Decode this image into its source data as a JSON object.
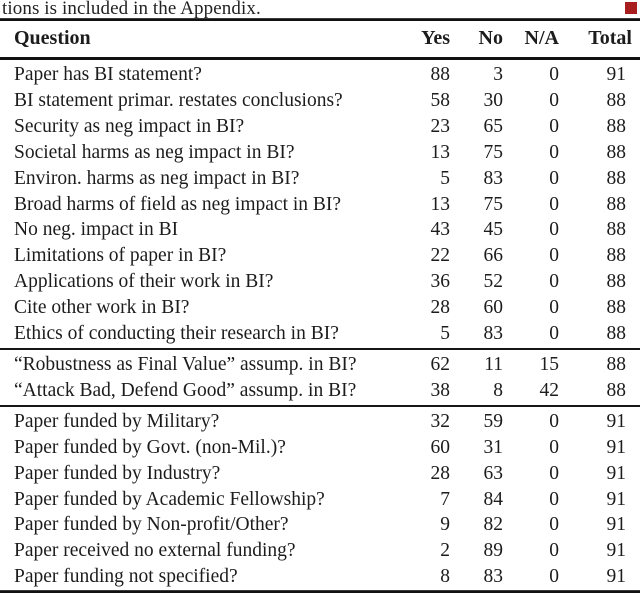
{
  "page": {
    "top_fragment": "tions is included in the Appendix.",
    "marker_color": "#a81d1d"
  },
  "table": {
    "headers": {
      "question": "Question",
      "yes": "Yes",
      "no": "No",
      "na": "N/A",
      "total": "Total"
    },
    "sections": [
      {
        "rows": [
          {
            "question": "Paper has BI statement?",
            "yes": 88,
            "no": 3,
            "na": 0,
            "total": 91
          },
          {
            "question": "BI statement primar. restates conclusions?",
            "yes": 58,
            "no": 30,
            "na": 0,
            "total": 88
          },
          {
            "question": "Security as neg impact in BI?",
            "yes": 23,
            "no": 65,
            "na": 0,
            "total": 88
          },
          {
            "question": "Societal harms as neg impact in BI?",
            "yes": 13,
            "no": 75,
            "na": 0,
            "total": 88
          },
          {
            "question": "Environ. harms as neg impact in BI?",
            "yes": 5,
            "no": 83,
            "na": 0,
            "total": 88
          },
          {
            "question": "Broad harms of field as neg impact in BI?",
            "yes": 13,
            "no": 75,
            "na": 0,
            "total": 88
          },
          {
            "question": "No neg. impact in BI",
            "yes": 43,
            "no": 45,
            "na": 0,
            "total": 88
          },
          {
            "question": "Limitations of paper in BI?",
            "yes": 22,
            "no": 66,
            "na": 0,
            "total": 88
          },
          {
            "question": "Applications of their work in BI?",
            "yes": 36,
            "no": 52,
            "na": 0,
            "total": 88
          },
          {
            "question": "Cite other work in BI?",
            "yes": 28,
            "no": 60,
            "na": 0,
            "total": 88
          },
          {
            "question": "Ethics of conducting their research in BI?",
            "yes": 5,
            "no": 83,
            "na": 0,
            "total": 88
          }
        ]
      },
      {
        "rows": [
          {
            "question": "“Robustness as Final Value” assump. in BI?",
            "yes": 62,
            "no": 11,
            "na": 15,
            "total": 88
          },
          {
            "question": "“Attack Bad, Defend Good” assump. in BI?",
            "yes": 38,
            "no": 8,
            "na": 42,
            "total": 88
          }
        ]
      },
      {
        "rows": [
          {
            "question": "Paper funded by Military?",
            "yes": 32,
            "no": 59,
            "na": 0,
            "total": 91
          },
          {
            "question": "Paper funded by Govt. (non-Mil.)?",
            "yes": 60,
            "no": 31,
            "na": 0,
            "total": 91
          },
          {
            "question": "Paper funded by Industry?",
            "yes": 28,
            "no": 63,
            "na": 0,
            "total": 91
          },
          {
            "question": "Paper funded by Academic Fellowship?",
            "yes": 7,
            "no": 84,
            "na": 0,
            "total": 91
          },
          {
            "question": "Paper funded by Non-profit/Other?",
            "yes": 9,
            "no": 82,
            "na": 0,
            "total": 91
          },
          {
            "question": "Paper received no external funding?",
            "yes": 2,
            "no": 89,
            "na": 0,
            "total": 91
          },
          {
            "question": "Paper funding not specified?",
            "yes": 8,
            "no": 83,
            "na": 0,
            "total": 91
          }
        ]
      }
    ]
  }
}
